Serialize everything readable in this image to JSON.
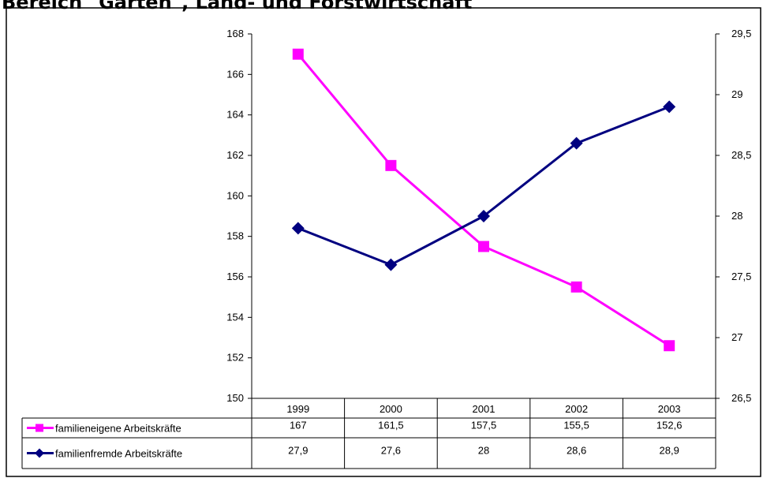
{
  "page": {
    "title": "Bereich \"Garten\", Land- und Forstwirtschaft"
  },
  "chart_data": {
    "type": "line",
    "title": "",
    "xlabel": "",
    "ylabel": "",
    "categories": [
      "1999",
      "2000",
      "2001",
      "2002",
      "2003"
    ],
    "y_left": {
      "min": 150,
      "max": 168,
      "step": 2,
      "ticks": [
        "150",
        "152",
        "154",
        "156",
        "158",
        "160",
        "162",
        "164",
        "166",
        "168"
      ]
    },
    "y_right": {
      "min": 26.5,
      "max": 29.5,
      "step": 0.5,
      "ticks": [
        "26,5",
        "27",
        "27,5",
        "28",
        "28,5",
        "29",
        "29,5"
      ]
    },
    "series": [
      {
        "name": "familieneigene Arbeitskräfte",
        "axis": "left",
        "color": "#ff00ff",
        "marker": "square",
        "values": [
          167,
          161.5,
          157.5,
          155.5,
          152.6
        ],
        "labels": [
          "167",
          "161,5",
          "157,5",
          "155,5",
          "152,6"
        ]
      },
      {
        "name": "familienfremde Arbeitskräfte",
        "axis": "right",
        "color": "#000080",
        "marker": "diamond",
        "values": [
          27.9,
          27.6,
          28,
          28.6,
          28.9
        ],
        "labels": [
          "27,9",
          "27,6",
          "28",
          "28,6",
          "28,9"
        ]
      }
    ],
    "grid": false,
    "legend": "data-table"
  }
}
